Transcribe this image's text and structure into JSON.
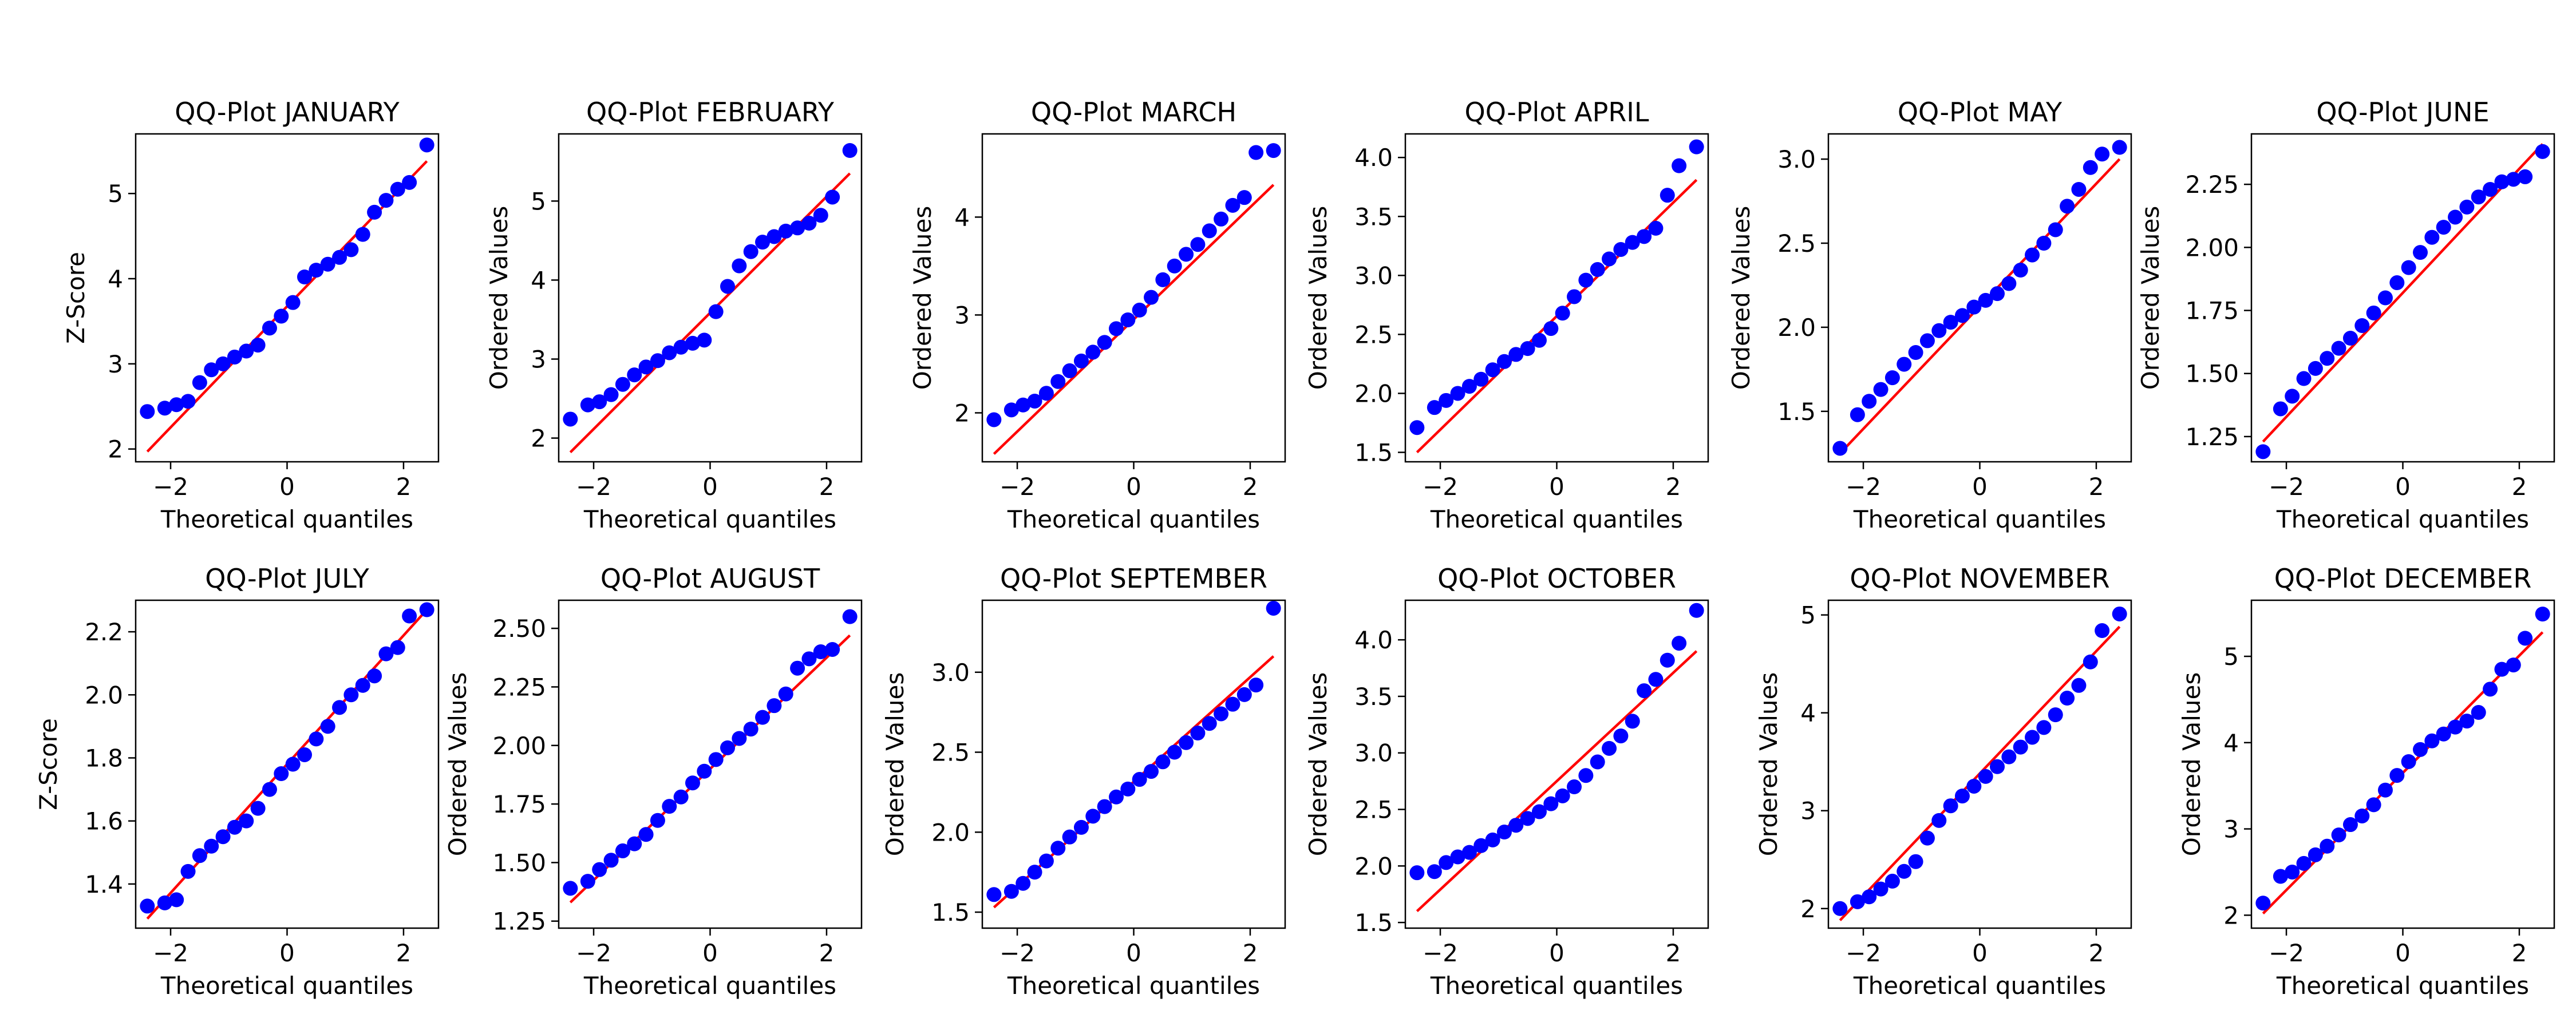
{
  "figure": {
    "layout": "2 rows x 6 columns grid of QQ-plots",
    "point_color": "#0000ff",
    "line_color": "#ff0000",
    "frame_color": "#000000"
  },
  "chart_data": [
    {
      "type": "scatter",
      "title": "QQ-Plot JANUARY",
      "xlabel": "Theoretical quantiles",
      "ylabel": "Z-Score",
      "xlim": [
        -2.6,
        2.6
      ],
      "xticks": [
        -2,
        0,
        2
      ],
      "xtick_labels": [
        "−2",
        "0",
        "2"
      ],
      "ylim": [
        1.85,
        5.7
      ],
      "yticks": [
        2,
        3,
        4,
        5
      ],
      "ytick_labels": [
        "2",
        "3",
        "4",
        "5"
      ],
      "fit_line": {
        "x": [
          -2.4,
          2.4
        ],
        "y": [
          1.97,
          5.38
        ]
      },
      "points": {
        "x": [
          -2.4,
          -2.1,
          -1.9,
          -1.7,
          -1.5,
          -1.3,
          -1.1,
          -0.9,
          -0.7,
          -0.5,
          -0.3,
          -0.1,
          0.1,
          0.3,
          0.5,
          0.7,
          0.9,
          1.1,
          1.3,
          1.5,
          1.7,
          1.9,
          2.1,
          2.4
        ],
        "y": [
          2.44,
          2.48,
          2.52,
          2.56,
          2.78,
          2.93,
          3.0,
          3.08,
          3.15,
          3.22,
          3.42,
          3.56,
          3.72,
          4.02,
          4.1,
          4.17,
          4.25,
          4.34,
          4.52,
          4.78,
          4.92,
          5.05,
          5.13,
          5.57
        ]
      }
    },
    {
      "type": "scatter",
      "title": "QQ-Plot FEBRUARY",
      "xlabel": "Theoretical quantiles",
      "ylabel": "Ordered Values",
      "xlim": [
        -2.6,
        2.6
      ],
      "xticks": [
        -2,
        0,
        2
      ],
      "xtick_labels": [
        "−2",
        "0",
        "2"
      ],
      "ylim": [
        1.7,
        5.85
      ],
      "yticks": [
        2,
        3,
        4,
        5
      ],
      "ytick_labels": [
        "2",
        "3",
        "4",
        "5"
      ],
      "fit_line": {
        "x": [
          -2.4,
          2.4
        ],
        "y": [
          1.82,
          5.35
        ]
      },
      "points": {
        "x": [
          -2.4,
          -2.1,
          -1.9,
          -1.7,
          -1.5,
          -1.3,
          -1.1,
          -0.9,
          -0.7,
          -0.5,
          -0.3,
          -0.1,
          0.1,
          0.3,
          0.5,
          0.7,
          0.9,
          1.1,
          1.3,
          1.5,
          1.7,
          1.9,
          2.1,
          2.4
        ],
        "y": [
          2.24,
          2.42,
          2.46,
          2.55,
          2.68,
          2.8,
          2.9,
          2.98,
          3.08,
          3.15,
          3.2,
          3.24,
          3.6,
          3.92,
          4.18,
          4.36,
          4.48,
          4.55,
          4.62,
          4.66,
          4.72,
          4.82,
          5.05,
          5.64
        ]
      }
    },
    {
      "type": "scatter",
      "title": "QQ-Plot MARCH",
      "xlabel": "Theoretical quantiles",
      "ylabel": "Ordered Values",
      "xlim": [
        -2.6,
        2.6
      ],
      "xticks": [
        -2,
        0,
        2
      ],
      "xtick_labels": [
        "−2",
        "0",
        "2"
      ],
      "ylim": [
        1.5,
        4.85
      ],
      "yticks": [
        2,
        3,
        4
      ],
      "ytick_labels": [
        "2",
        "3",
        "4"
      ],
      "fit_line": {
        "x": [
          -2.4,
          2.4
        ],
        "y": [
          1.58,
          4.33
        ]
      },
      "points": {
        "x": [
          -2.4,
          -2.1,
          -1.9,
          -1.7,
          -1.5,
          -1.3,
          -1.1,
          -0.9,
          -0.7,
          -0.5,
          -0.3,
          -0.1,
          0.1,
          0.3,
          0.5,
          0.7,
          0.9,
          1.1,
          1.3,
          1.5,
          1.7,
          1.9,
          2.1,
          2.4
        ],
        "y": [
          1.93,
          2.03,
          2.08,
          2.12,
          2.2,
          2.32,
          2.43,
          2.53,
          2.62,
          2.72,
          2.86,
          2.95,
          3.05,
          3.18,
          3.36,
          3.5,
          3.62,
          3.72,
          3.86,
          3.98,
          4.12,
          4.2,
          4.66,
          4.68
        ]
      }
    },
    {
      "type": "scatter",
      "title": "QQ-Plot APRIL",
      "xlabel": "Theoretical quantiles",
      "ylabel": "Ordered Values",
      "xlim": [
        -2.6,
        2.6
      ],
      "xticks": [
        -2,
        0,
        2
      ],
      "xtick_labels": [
        "−2",
        "0",
        "2"
      ],
      "ylim": [
        1.42,
        4.2
      ],
      "yticks": [
        1.5,
        2.0,
        2.5,
        3.0,
        3.5,
        4.0
      ],
      "ytick_labels": [
        "1.5",
        "2.0",
        "2.5",
        "3.0",
        "3.5",
        "4.0"
      ],
      "fit_line": {
        "x": [
          -2.4,
          2.4
        ],
        "y": [
          1.5,
          3.81
        ]
      },
      "points": {
        "x": [
          -2.4,
          -2.1,
          -1.9,
          -1.7,
          -1.5,
          -1.3,
          -1.1,
          -0.9,
          -0.7,
          -0.5,
          -0.3,
          -0.1,
          0.1,
          0.3,
          0.5,
          0.7,
          0.9,
          1.1,
          1.3,
          1.5,
          1.7,
          1.9,
          2.1,
          2.4
        ],
        "y": [
          1.71,
          1.88,
          1.94,
          2.0,
          2.06,
          2.12,
          2.2,
          2.27,
          2.33,
          2.38,
          2.45,
          2.55,
          2.68,
          2.82,
          2.96,
          3.05,
          3.14,
          3.22,
          3.28,
          3.33,
          3.4,
          3.68,
          3.93,
          4.09
        ]
      }
    },
    {
      "type": "scatter",
      "title": "QQ-Plot MAY",
      "xlabel": "Theoretical quantiles",
      "ylabel": "Ordered Values",
      "xlim": [
        -2.6,
        2.6
      ],
      "xticks": [
        -2,
        0,
        2
      ],
      "xtick_labels": [
        "−2",
        "0",
        "2"
      ],
      "ylim": [
        1.2,
        3.15
      ],
      "yticks": [
        1.5,
        2.0,
        2.5,
        3.0
      ],
      "ytick_labels": [
        "1.5",
        "2.0",
        "2.5",
        "3.0"
      ],
      "fit_line": {
        "x": [
          -2.4,
          2.4
        ],
        "y": [
          1.25,
          3.0
        ]
      },
      "points": {
        "x": [
          -2.4,
          -2.1,
          -1.9,
          -1.7,
          -1.5,
          -1.3,
          -1.1,
          -0.9,
          -0.7,
          -0.5,
          -0.3,
          -0.1,
          0.1,
          0.3,
          0.5,
          0.7,
          0.9,
          1.1,
          1.3,
          1.5,
          1.7,
          1.9,
          2.1,
          2.4
        ],
        "y": [
          1.28,
          1.48,
          1.56,
          1.63,
          1.7,
          1.78,
          1.85,
          1.92,
          1.98,
          2.03,
          2.07,
          2.12,
          2.16,
          2.2,
          2.26,
          2.34,
          2.43,
          2.5,
          2.58,
          2.72,
          2.82,
          2.95,
          3.03,
          3.07
        ]
      }
    },
    {
      "type": "scatter",
      "title": "QQ-Plot JUNE",
      "xlabel": "Theoretical quantiles",
      "ylabel": "Ordered Values",
      "xlim": [
        -2.6,
        2.6
      ],
      "xticks": [
        -2,
        0,
        2
      ],
      "xtick_labels": [
        "−2",
        "0",
        "2"
      ],
      "ylim": [
        1.15,
        2.45
      ],
      "yticks": [
        1.25,
        1.5,
        1.75,
        2.0,
        2.25
      ],
      "ytick_labels": [
        "1.25",
        "1.50",
        "1.75",
        "2.00",
        "2.25"
      ],
      "fit_line": {
        "x": [
          -2.4,
          2.4
        ],
        "y": [
          1.23,
          2.41
        ]
      },
      "points": {
        "x": [
          -2.4,
          -2.1,
          -1.9,
          -1.7,
          -1.5,
          -1.3,
          -1.1,
          -0.9,
          -0.7,
          -0.5,
          -0.3,
          -0.1,
          0.1,
          0.3,
          0.5,
          0.7,
          0.9,
          1.1,
          1.3,
          1.5,
          1.7,
          1.9,
          2.1,
          2.4
        ],
        "y": [
          1.19,
          1.36,
          1.41,
          1.48,
          1.52,
          1.56,
          1.6,
          1.64,
          1.69,
          1.74,
          1.8,
          1.86,
          1.92,
          1.98,
          2.04,
          2.08,
          2.12,
          2.16,
          2.2,
          2.23,
          2.26,
          2.27,
          2.28,
          2.38
        ]
      }
    },
    {
      "type": "scatter",
      "title": "QQ-Plot JULY",
      "xlabel": "Theoretical quantiles",
      "ylabel": "Z-Score",
      "xlim": [
        -2.6,
        2.6
      ],
      "xticks": [
        -2,
        0,
        2
      ],
      "xtick_labels": [
        "−2",
        "0",
        "2"
      ],
      "ylim": [
        1.26,
        2.3
      ],
      "yticks": [
        1.4,
        1.6,
        1.8,
        2.0,
        2.2
      ],
      "ytick_labels": [
        "1.4",
        "1.6",
        "1.8",
        "2.0",
        "2.2"
      ],
      "fit_line": {
        "x": [
          -2.4,
          2.4
        ],
        "y": [
          1.29,
          2.27
        ]
      },
      "points": {
        "x": [
          -2.4,
          -2.1,
          -1.9,
          -1.7,
          -1.5,
          -1.3,
          -1.1,
          -0.9,
          -0.7,
          -0.5,
          -0.3,
          -0.1,
          0.1,
          0.3,
          0.5,
          0.7,
          0.9,
          1.1,
          1.3,
          1.5,
          1.7,
          1.9,
          2.1,
          2.4
        ],
        "y": [
          1.33,
          1.34,
          1.35,
          1.44,
          1.49,
          1.52,
          1.55,
          1.58,
          1.6,
          1.64,
          1.7,
          1.75,
          1.78,
          1.81,
          1.86,
          1.9,
          1.96,
          2.0,
          2.03,
          2.06,
          2.13,
          2.15,
          2.25,
          2.27
        ]
      }
    },
    {
      "type": "scatter",
      "title": "QQ-Plot AUGUST",
      "xlabel": "Theoretical quantiles",
      "ylabel": "Ordered Values",
      "xlim": [
        -2.6,
        2.6
      ],
      "xticks": [
        -2,
        0,
        2
      ],
      "xtick_labels": [
        "−2",
        "0",
        "2"
      ],
      "ylim": [
        1.22,
        2.62
      ],
      "yticks": [
        1.25,
        1.5,
        1.75,
        2.0,
        2.25,
        2.5
      ],
      "ytick_labels": [
        "1.25",
        "1.50",
        "1.75",
        "2.00",
        "2.25",
        "2.50"
      ],
      "fit_line": {
        "x": [
          -2.4,
          2.4
        ],
        "y": [
          1.33,
          2.47
        ]
      },
      "points": {
        "x": [
          -2.4,
          -2.1,
          -1.9,
          -1.7,
          -1.5,
          -1.3,
          -1.1,
          -0.9,
          -0.7,
          -0.5,
          -0.3,
          -0.1,
          0.1,
          0.3,
          0.5,
          0.7,
          0.9,
          1.1,
          1.3,
          1.5,
          1.7,
          1.9,
          2.1,
          2.4
        ],
        "y": [
          1.39,
          1.42,
          1.47,
          1.51,
          1.55,
          1.58,
          1.62,
          1.68,
          1.74,
          1.78,
          1.84,
          1.89,
          1.94,
          1.99,
          2.03,
          2.07,
          2.12,
          2.17,
          2.22,
          2.33,
          2.37,
          2.4,
          2.41,
          2.55
        ]
      }
    },
    {
      "type": "scatter",
      "title": "QQ-Plot SEPTEMBER",
      "xlabel": "Theoretical quantiles",
      "ylabel": "Ordered Values",
      "xlim": [
        -2.6,
        2.6
      ],
      "xticks": [
        -2,
        0,
        2
      ],
      "xtick_labels": [
        "−2",
        "0",
        "2"
      ],
      "ylim": [
        1.4,
        3.45
      ],
      "yticks": [
        1.5,
        2.0,
        2.5,
        3.0
      ],
      "ytick_labels": [
        "1.5",
        "2.0",
        "2.5",
        "3.0"
      ],
      "fit_line": {
        "x": [
          -2.4,
          2.4
        ],
        "y": [
          1.53,
          3.1
        ]
      },
      "points": {
        "x": [
          -2.4,
          -2.1,
          -1.9,
          -1.7,
          -1.5,
          -1.3,
          -1.1,
          -0.9,
          -0.7,
          -0.5,
          -0.3,
          -0.1,
          0.1,
          0.3,
          0.5,
          0.7,
          0.9,
          1.1,
          1.3,
          1.5,
          1.7,
          1.9,
          2.1,
          2.4
        ],
        "y": [
          1.61,
          1.63,
          1.68,
          1.75,
          1.82,
          1.9,
          1.97,
          2.03,
          2.1,
          2.16,
          2.22,
          2.27,
          2.33,
          2.38,
          2.44,
          2.5,
          2.56,
          2.62,
          2.68,
          2.74,
          2.8,
          2.86,
          2.92,
          3.4
        ]
      }
    },
    {
      "type": "scatter",
      "title": "QQ-Plot OCTOBER",
      "xlabel": "Theoretical quantiles",
      "ylabel": "Ordered Values",
      "xlim": [
        -2.6,
        2.6
      ],
      "xticks": [
        -2,
        0,
        2
      ],
      "xtick_labels": [
        "−2",
        "0",
        "2"
      ],
      "ylim": [
        1.45,
        4.35
      ],
      "yticks": [
        1.5,
        2.0,
        2.5,
        3.0,
        3.5,
        4.0
      ],
      "ytick_labels": [
        "1.5",
        "2.0",
        "2.5",
        "3.0",
        "3.5",
        "4.0"
      ],
      "fit_line": {
        "x": [
          -2.4,
          2.4
        ],
        "y": [
          1.6,
          3.9
        ]
      },
      "points": {
        "x": [
          -2.4,
          -2.1,
          -1.9,
          -1.7,
          -1.5,
          -1.3,
          -1.1,
          -0.9,
          -0.7,
          -0.5,
          -0.3,
          -0.1,
          0.1,
          0.3,
          0.5,
          0.7,
          0.9,
          1.1,
          1.3,
          1.5,
          1.7,
          1.9,
          2.1,
          2.4
        ],
        "y": [
          1.94,
          1.95,
          2.03,
          2.08,
          2.12,
          2.18,
          2.23,
          2.3,
          2.36,
          2.42,
          2.48,
          2.55,
          2.62,
          2.7,
          2.8,
          2.92,
          3.04,
          3.15,
          3.28,
          3.55,
          3.65,
          3.82,
          3.97,
          4.26
        ]
      }
    },
    {
      "type": "scatter",
      "title": "QQ-Plot NOVEMBER",
      "xlabel": "Theoretical quantiles",
      "ylabel": "Ordered Values",
      "xlim": [
        -2.6,
        2.6
      ],
      "xticks": [
        -2,
        0,
        2
      ],
      "xtick_labels": [
        "−2",
        "0",
        "2"
      ],
      "ylim": [
        1.8,
        5.15
      ],
      "yticks": [
        2,
        3,
        4,
        5
      ],
      "ytick_labels": [
        "2",
        "3",
        "4",
        "5"
      ],
      "fit_line": {
        "x": [
          -2.4,
          2.4
        ],
        "y": [
          1.88,
          4.88
        ]
      },
      "points": {
        "x": [
          -2.4,
          -2.1,
          -1.9,
          -1.7,
          -1.5,
          -1.3,
          -1.1,
          -0.9,
          -0.7,
          -0.5,
          -0.3,
          -0.1,
          0.1,
          0.3,
          0.5,
          0.7,
          0.9,
          1.1,
          1.3,
          1.5,
          1.7,
          1.9,
          2.1,
          2.4
        ],
        "y": [
          2.0,
          2.07,
          2.12,
          2.2,
          2.28,
          2.38,
          2.48,
          2.72,
          2.9,
          3.05,
          3.15,
          3.25,
          3.35,
          3.45,
          3.55,
          3.65,
          3.75,
          3.85,
          3.98,
          4.15,
          4.28,
          4.52,
          4.84,
          5.01
        ]
      }
    },
    {
      "type": "scatter",
      "title": "QQ-Plot DECEMBER",
      "xlabel": "Theoretical quantiles",
      "ylabel": "Ordered Values",
      "xlim": [
        -2.6,
        2.6
      ],
      "xticks": [
        -2,
        0,
        2
      ],
      "xtick_labels": [
        "−2",
        "0",
        "2"
      ],
      "ylim": [
        1.85,
        5.65
      ],
      "yticks": [
        2,
        3,
        4,
        5
      ],
      "ytick_labels": [
        "2",
        "3",
        "4",
        "5"
      ],
      "fit_line": {
        "x": [
          -2.4,
          2.4
        ],
        "y": [
          2.02,
          5.28
        ]
      },
      "points": {
        "x": [
          -2.4,
          -2.1,
          -1.9,
          -1.7,
          -1.5,
          -1.3,
          -1.1,
          -0.9,
          -0.7,
          -0.5,
          -0.3,
          -0.1,
          0.1,
          0.3,
          0.5,
          0.7,
          0.9,
          1.1,
          1.3,
          1.5,
          1.7,
          1.9,
          2.1,
          2.4
        ],
        "y": [
          2.14,
          2.45,
          2.5,
          2.6,
          2.7,
          2.8,
          2.93,
          3.05,
          3.15,
          3.28,
          3.45,
          3.62,
          3.78,
          3.92,
          4.02,
          4.1,
          4.18,
          4.25,
          4.35,
          4.62,
          4.85,
          4.9,
          5.21,
          5.49
        ]
      }
    }
  ]
}
